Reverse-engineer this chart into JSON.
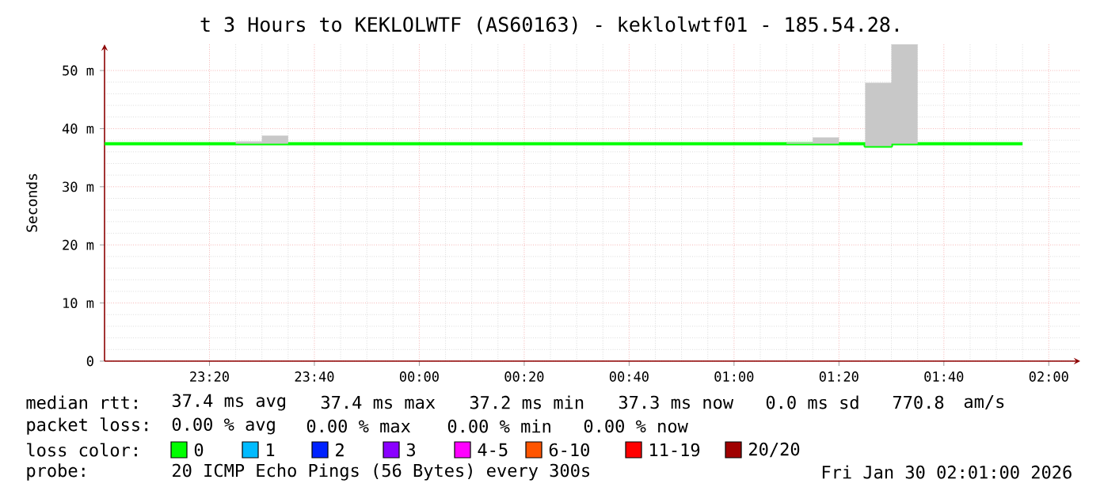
{
  "chart_data": {
    "type": "step",
    "title": "t 3 Hours to KEKLOLWTF (AS60163) - keklolwtf01 - 185.54.28.",
    "ylabel": "Seconds",
    "x": [
      "2026-01-29T23:00",
      "2026-01-29T23:05",
      "2026-01-29T23:10",
      "2026-01-29T23:15",
      "2026-01-29T23:20",
      "2026-01-29T23:25",
      "2026-01-29T23:30",
      "2026-01-29T23:35",
      "2026-01-29T23:40",
      "2026-01-29T23:45",
      "2026-01-29T23:50",
      "2026-01-29T23:55",
      "2026-01-30T00:00",
      "2026-01-30T00:05",
      "2026-01-30T00:10",
      "2026-01-30T00:15",
      "2026-01-30T00:20",
      "2026-01-30T00:25",
      "2026-01-30T00:30",
      "2026-01-30T00:35",
      "2026-01-30T00:40",
      "2026-01-30T00:45",
      "2026-01-30T00:50",
      "2026-01-30T00:55",
      "2026-01-30T01:00",
      "2026-01-30T01:05",
      "2026-01-30T01:10",
      "2026-01-30T01:15",
      "2026-01-30T01:20",
      "2026-01-30T01:25",
      "2026-01-30T01:30",
      "2026-01-30T01:35",
      "2026-01-30T01:40",
      "2026-01-30T01:45",
      "2026-01-30T01:50",
      "2026-01-30T01:55"
    ],
    "series": [
      {
        "name": "0",
        "color": "#00ff00",
        "values": [
          37.4,
          37.4,
          37.4,
          37.4,
          37.4,
          37.4,
          37.4,
          37.4,
          37.4,
          37.4,
          37.4,
          37.4,
          37.4,
          37.4,
          37.4,
          37.4,
          37.4,
          37.4,
          37.4,
          37.4,
          37.4,
          37.4,
          37.4,
          37.4,
          37.4,
          37.4,
          37.4,
          37.4,
          37.4,
          37.0,
          37.4,
          37.4,
          37.4,
          37.4,
          37.4,
          37.4
        ],
        "lower": [
          37.4,
          37.4,
          37.4,
          37.4,
          37.4,
          37.4,
          37.4,
          37.4,
          37.4,
          37.4,
          37.4,
          37.4,
          37.4,
          37.4,
          37.4,
          37.4,
          37.4,
          37.4,
          37.4,
          37.4,
          37.4,
          37.4,
          37.4,
          37.4,
          37.4,
          37.4,
          37.4,
          37.4,
          37.4,
          37.0,
          37.4,
          37.4,
          37.4,
          37.4,
          37.4,
          37.4
        ],
        "upper": [
          37.4,
          37.4,
          37.4,
          37.4,
          37.4,
          37.8,
          38.8,
          37.4,
          37.4,
          37.4,
          37.4,
          37.4,
          37.4,
          37.4,
          37.4,
          37.4,
          37.4,
          37.4,
          37.4,
          37.4,
          37.4,
          37.4,
          37.4,
          37.4,
          37.4,
          37.4,
          37.6,
          38.5,
          37.4,
          47.9,
          54.5,
          37.4,
          37.4,
          37.4,
          37.4,
          37.4
        ]
      },
      {
        "name": "1",
        "color": "#00bbff",
        "values": [
          null,
          null,
          null,
          null,
          null,
          null,
          null,
          null,
          null,
          null,
          null,
          null,
          null,
          null,
          null,
          null,
          null,
          null,
          null,
          null,
          null,
          null,
          null,
          null,
          null,
          null,
          null,
          null,
          null,
          null,
          null,
          null,
          null,
          null,
          null,
          null
        ]
      },
      {
        "name": "2",
        "color": "#0022ff",
        "values": [
          null,
          null,
          null,
          null,
          null,
          null,
          null,
          null,
          null,
          null,
          null,
          null,
          null,
          null,
          null,
          null,
          null,
          null,
          null,
          null,
          null,
          null,
          null,
          null,
          null,
          null,
          null,
          null,
          null,
          null,
          null,
          null,
          null,
          null,
          null,
          null
        ]
      },
      {
        "name": "3",
        "color": "#8a00ff",
        "values": [
          null,
          null,
          null,
          null,
          null,
          null,
          null,
          null,
          null,
          null,
          null,
          null,
          null,
          null,
          null,
          null,
          null,
          null,
          null,
          null,
          null,
          null,
          null,
          null,
          null,
          null,
          null,
          null,
          null,
          null,
          null,
          null,
          null,
          null,
          null,
          null
        ]
      },
      {
        "name": "4-5",
        "color": "#ff00ff",
        "values": [
          null,
          null,
          null,
          null,
          null,
          null,
          null,
          null,
          null,
          null,
          null,
          null,
          null,
          null,
          null,
          null,
          null,
          null,
          null,
          null,
          null,
          null,
          null,
          null,
          null,
          null,
          null,
          null,
          null,
          null,
          null,
          null,
          null,
          null,
          null,
          null
        ]
      },
      {
        "name": "6-10",
        "color": "#ff5500",
        "values": [
          null,
          null,
          null,
          null,
          null,
          null,
          null,
          null,
          null,
          null,
          null,
          null,
          null,
          null,
          null,
          null,
          null,
          null,
          null,
          null,
          null,
          null,
          null,
          null,
          null,
          null,
          null,
          null,
          null,
          null,
          null,
          null,
          null,
          null,
          null,
          null
        ]
      },
      {
        "name": "11-19",
        "color": "#ff0000",
        "values": [
          null,
          null,
          null,
          null,
          null,
          null,
          null,
          null,
          null,
          null,
          null,
          null,
          null,
          null,
          null,
          null,
          null,
          null,
          null,
          null,
          null,
          null,
          null,
          null,
          null,
          null,
          null,
          null,
          null,
          null,
          null,
          null,
          null,
          null,
          null,
          null
        ]
      },
      {
        "name": "20/20",
        "color": "#a00000",
        "values": [
          null,
          null,
          null,
          null,
          null,
          null,
          null,
          null,
          null,
          null,
          null,
          null,
          null,
          null,
          null,
          null,
          null,
          null,
          null,
          null,
          null,
          null,
          null,
          null,
          null,
          null,
          null,
          null,
          null,
          null,
          null,
          null,
          null,
          null,
          null,
          null
        ]
      }
    ],
    "xlim": [
      "2026-01-29T23:00",
      "2026-01-30T02:06"
    ],
    "ylim": [
      0,
      54.5
    ],
    "xticks": [
      {
        "value": "2026-01-29T23:20",
        "label": "23:20"
      },
      {
        "value": "2026-01-29T23:40",
        "label": "23:40"
      },
      {
        "value": "2026-01-30T00:00",
        "label": "00:00"
      },
      {
        "value": "2026-01-30T00:20",
        "label": "00:20"
      },
      {
        "value": "2026-01-30T00:40",
        "label": "00:40"
      },
      {
        "value": "2026-01-30T01:00",
        "label": "01:00"
      },
      {
        "value": "2026-01-30T01:20",
        "label": "01:20"
      },
      {
        "value": "2026-01-30T01:40",
        "label": "01:40"
      },
      {
        "value": "2026-01-30T02:00",
        "label": "02:00"
      }
    ],
    "yticks": [
      0,
      {
        "value": 10,
        "label": "10 m"
      },
      {
        "value": 20,
        "label": "20 m"
      },
      {
        "value": 30,
        "label": "30 m"
      },
      {
        "value": 40,
        "label": "40 m"
      },
      {
        "value": 50,
        "label": "50 m"
      }
    ],
    "grid": true,
    "legend": "bottom",
    "legend_title": "loss color:",
    "annotations": [
      "median rtt:",
      "37.4 ms avg",
      "37.4 ms max",
      "37.2 ms min",
      "37.3 ms now",
      "0.0 ms sd",
      "770.8",
      "am/s",
      "packet loss:",
      "0.00 % avg",
      "0.00 % max",
      "0.00 % min",
      "0.00 % now",
      "probe:",
      "20 ICMP Echo Pings (56 Bytes) every 300s",
      "Fri Jan 30 02:01:00 2026"
    ]
  }
}
